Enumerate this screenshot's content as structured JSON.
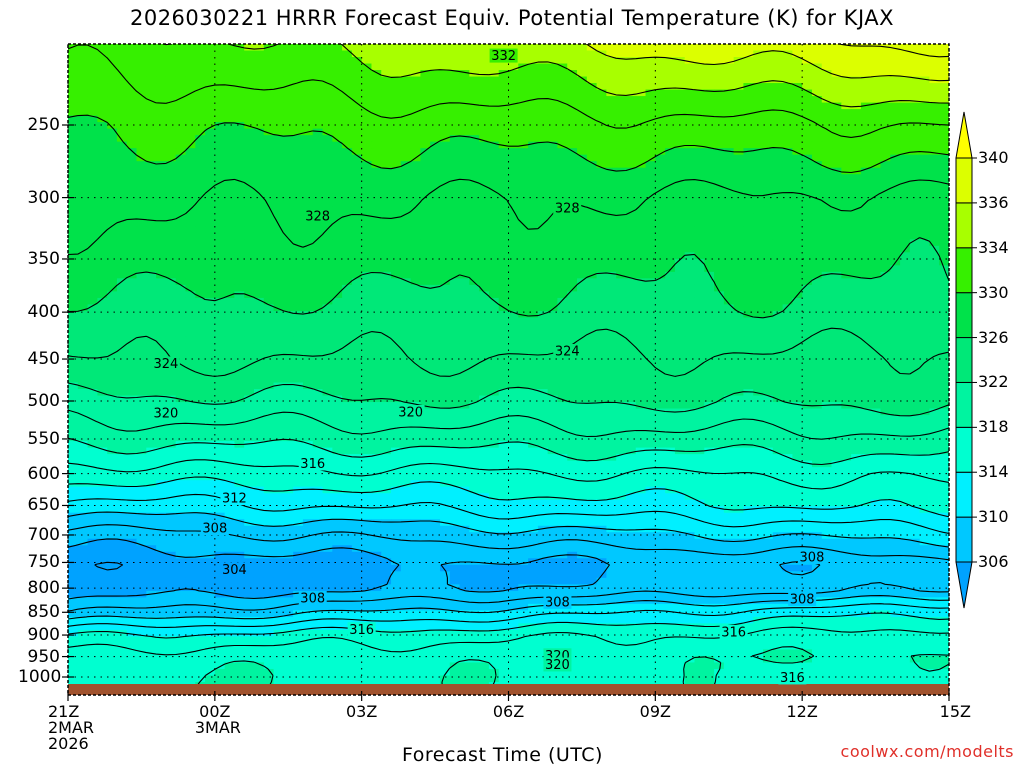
{
  "chart_data": {
    "type": "contour",
    "title": "2026030221 HRRR Forecast Equiv. Potential Temperature (K) for KJAX",
    "xlabel": "Forecast Time (UTC)",
    "ylabel": "",
    "credit": "coolwx.com/modelts",
    "x_ticks": [
      {
        "h": 0,
        "l1": "21Z",
        "l2": "2MAR",
        "l3": "2026"
      },
      {
        "h": 3,
        "l1": "00Z",
        "l2": "3MAR",
        "l3": ""
      },
      {
        "h": 6,
        "l1": "03Z",
        "l2": "",
        "l3": ""
      },
      {
        "h": 9,
        "l1": "06Z",
        "l2": "",
        "l3": ""
      },
      {
        "h": 12,
        "l1": "09Z",
        "l2": "",
        "l3": ""
      },
      {
        "h": 15,
        "l1": "12Z",
        "l2": "",
        "l3": ""
      },
      {
        "h": 18,
        "l1": "15Z",
        "l2": "",
        "l3": ""
      }
    ],
    "xlim": [
      0,
      18
    ],
    "y_ticks": [
      250,
      300,
      350,
      400,
      450,
      500,
      550,
      600,
      650,
      700,
      750,
      800,
      850,
      900,
      950,
      1000
    ],
    "ylim_hPa": [
      200,
      1025
    ],
    "colorbar": {
      "labels": [
        306,
        310,
        314,
        318,
        322,
        326,
        330,
        334,
        336,
        340
      ],
      "levels": [
        {
          "v": 304,
          "color": "#00a2ff"
        },
        {
          "v": 306,
          "color": "#00c8ff"
        },
        {
          "v": 310,
          "color": "#00f0ff"
        },
        {
          "v": 314,
          "color": "#00ffd0"
        },
        {
          "v": 318,
          "color": "#00f4a0"
        },
        {
          "v": 322,
          "color": "#00e878"
        },
        {
          "v": 326,
          "color": "#00e24a"
        },
        {
          "v": 330,
          "color": "#36f000"
        },
        {
          "v": 334,
          "color": "#a8ff00"
        },
        {
          "v": 336,
          "color": "#dcff00"
        },
        {
          "v": 340,
          "color": "#ffff00"
        }
      ]
    },
    "ground_color": "#a0522d",
    "contour_labels": [
      {
        "v": 332,
        "h": 8.9,
        "p": 210
      },
      {
        "v": 328,
        "h": 5.1,
        "p": 314
      },
      {
        "v": 328,
        "h": 10.2,
        "p": 308
      },
      {
        "v": 324,
        "h": 2.0,
        "p": 455
      },
      {
        "v": 324,
        "h": 10.2,
        "p": 441
      },
      {
        "v": 320,
        "h": 2.0,
        "p": 515
      },
      {
        "v": 320,
        "h": 7.0,
        "p": 514
      },
      {
        "v": 316,
        "h": 5.0,
        "p": 585
      },
      {
        "v": 312,
        "h": 3.4,
        "p": 638
      },
      {
        "v": 308,
        "h": 3.0,
        "p": 688
      },
      {
        "v": 304,
        "h": 3.4,
        "p": 763
      },
      {
        "v": 308,
        "h": 15.2,
        "p": 740
      },
      {
        "v": 308,
        "h": 5.0,
        "p": 820
      },
      {
        "v": 308,
        "h": 10.0,
        "p": 828
      },
      {
        "v": 308,
        "h": 15.0,
        "p": 822
      },
      {
        "v": 316,
        "h": 6.0,
        "p": 887
      },
      {
        "v": 316,
        "h": 13.6,
        "p": 893
      },
      {
        "v": 320,
        "h": 10.0,
        "p": 947
      },
      {
        "v": 320,
        "h": 10.0,
        "p": 969
      },
      {
        "v": 316,
        "h": 14.8,
        "p": 1001
      }
    ],
    "profile_levels_hPa": [
      200,
      250,
      300,
      350,
      400,
      450,
      500,
      550,
      600,
      650,
      700,
      750,
      800,
      850,
      900,
      950,
      1000,
      1025
    ],
    "theta_e_profile_start": [
      333,
      330,
      328.5,
      327,
      325.5,
      324.2,
      321.5,
      318.5,
      315,
      311,
      307,
      304.5,
      304.5,
      308,
      314,
      317,
      318,
      318
    ],
    "theta_e_profile_end": [
      339,
      332,
      327.5,
      326.5,
      325.5,
      323.5,
      322.5,
      319.5,
      316.5,
      314.8,
      311,
      307,
      307.5,
      314,
      317,
      318,
      317,
      317
    ]
  }
}
